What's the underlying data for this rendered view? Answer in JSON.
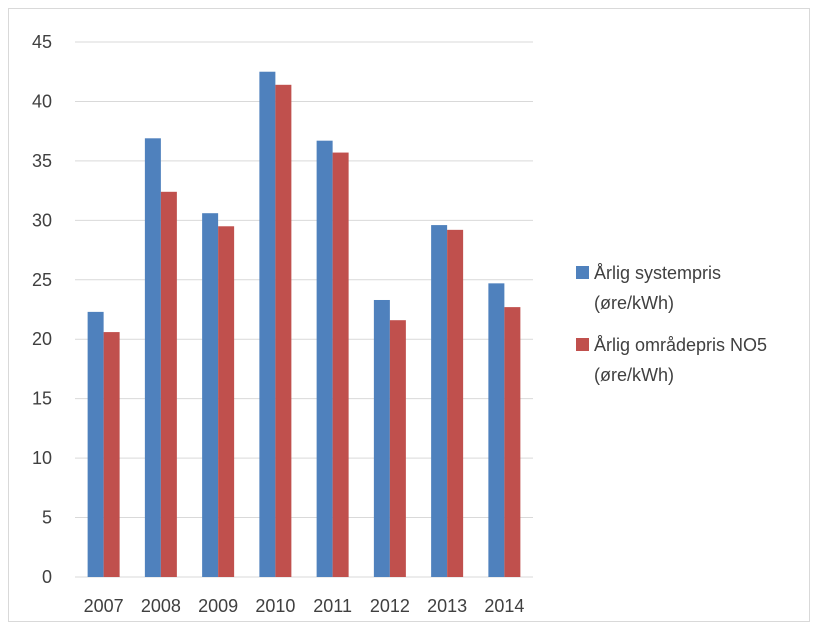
{
  "chart_data": {
    "type": "bar",
    "categories": [
      "2007",
      "2008",
      "2009",
      "2010",
      "2011",
      "2012",
      "2013",
      "2014"
    ],
    "series": [
      {
        "name": "Årlig systempris (øre/kWh)",
        "legend_lines": [
          "Årlig systempris",
          "(øre/kWh)"
        ],
        "color": "#4f81bd",
        "values": [
          22.3,
          36.9,
          30.6,
          42.5,
          36.7,
          23.3,
          29.6,
          24.7
        ]
      },
      {
        "name": "Årlig områdepris NO5 (øre/kWh)",
        "legend_lines": [
          "Årlig områdepris NO5",
          "(øre/kWh)"
        ],
        "color": "#c0504d",
        "values": [
          20.6,
          32.4,
          29.5,
          41.4,
          35.7,
          21.6,
          29.2,
          22.7
        ]
      }
    ],
    "ylim": [
      0,
      45
    ],
    "yticks": [
      "0",
      "5",
      "10",
      "15",
      "20",
      "25",
      "30",
      "35",
      "40",
      "45"
    ],
    "grid": true,
    "legend_position": "right",
    "colors": {
      "grid": "#d9d9d9",
      "text": "#404040"
    }
  }
}
